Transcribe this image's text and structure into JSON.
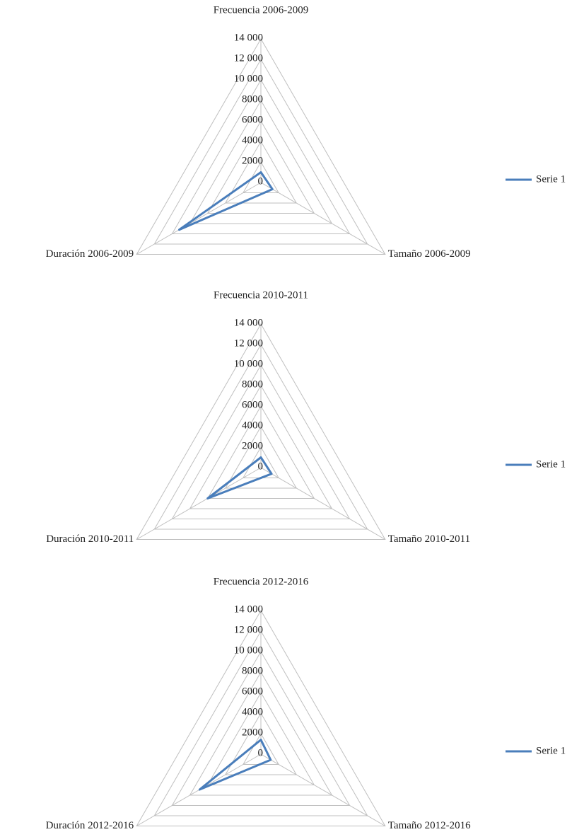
{
  "chart_data": [
    {
      "type": "radar",
      "categories": [
        "Frecuencia 2006-2009",
        "Tamaño 2006-2009",
        "Duración 2006-2009"
      ],
      "series": [
        {
          "name": "Serie 1",
          "color": "#4a7ebb",
          "values": [
            1000,
            1300,
            9200
          ]
        }
      ],
      "ylim": [
        0,
        14000
      ],
      "yticks": [
        0,
        2000,
        4000,
        6000,
        8000,
        {
          "value": 10000,
          "label": "10 000"
        },
        {
          "value": 12000,
          "label": "12 000"
        },
        {
          "value": 14000,
          "label": "14 000"
        }
      ],
      "grid": true,
      "legend": "right"
    },
    {
      "type": "radar",
      "categories": [
        "Frecuencia 2010-2011",
        "Tamaño 2010-2011",
        "Duración 2010-2011"
      ],
      "series": [
        {
          "name": "Serie 1",
          "color": "#4a7ebb",
          "values": [
            1000,
            1200,
            6000
          ]
        }
      ],
      "ylim": [
        0,
        14000
      ],
      "yticks": [
        0,
        2000,
        4000,
        6000,
        8000,
        {
          "value": 10000,
          "label": "10 000"
        },
        {
          "value": 12000,
          "label": "12 000"
        },
        {
          "value": 14000,
          "label": "14 000"
        }
      ],
      "grid": true,
      "legend": "right"
    },
    {
      "type": "radar",
      "categories": [
        "Frecuencia 2012-2016",
        "Tamaño 2012-2016",
        "Duración 2012-2016"
      ],
      "series": [
        {
          "name": "Serie 1",
          "color": "#4a7ebb",
          "values": [
            1400,
            1100,
            6900
          ]
        }
      ],
      "ylim": [
        0,
        14000
      ],
      "yticks": [
        0,
        2000,
        4000,
        6000,
        8000,
        {
          "value": 10000,
          "label": "10 000"
        },
        {
          "value": 12000,
          "label": "12 000"
        },
        {
          "value": 14000,
          "label": "14 000"
        }
      ],
      "grid": true,
      "legend": "right"
    }
  ]
}
